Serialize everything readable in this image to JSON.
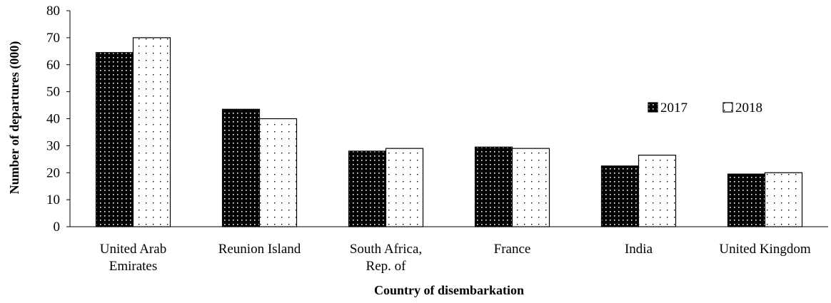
{
  "chart_data": {
    "type": "bar",
    "categories": [
      [
        "United Arab",
        "Emirates"
      ],
      [
        "Reunion Island"
      ],
      [
        "South Africa,",
        "Rep. of"
      ],
      [
        "France"
      ],
      [
        "India"
      ],
      [
        "United Kingdom"
      ]
    ],
    "series": [
      {
        "name": "2017",
        "values": [
          64.5,
          43.5,
          28,
          29.5,
          22.5,
          19.5
        ],
        "color": "#000000",
        "pattern": "dots-on-dark"
      },
      {
        "name": "2018",
        "values": [
          70,
          40,
          29,
          29,
          26.5,
          20
        ],
        "color": "#ffffff",
        "pattern": "dots-on-light"
      }
    ],
    "xlabel": "Country of disembarkation",
    "ylabel": "Number of departures  (000)",
    "ylim": [
      0,
      80
    ],
    "yticks": [
      "0",
      "10",
      "20",
      "30",
      "40",
      "50",
      "60",
      "70",
      "80"
    ],
    "grid": false,
    "legend_position": "right"
  }
}
